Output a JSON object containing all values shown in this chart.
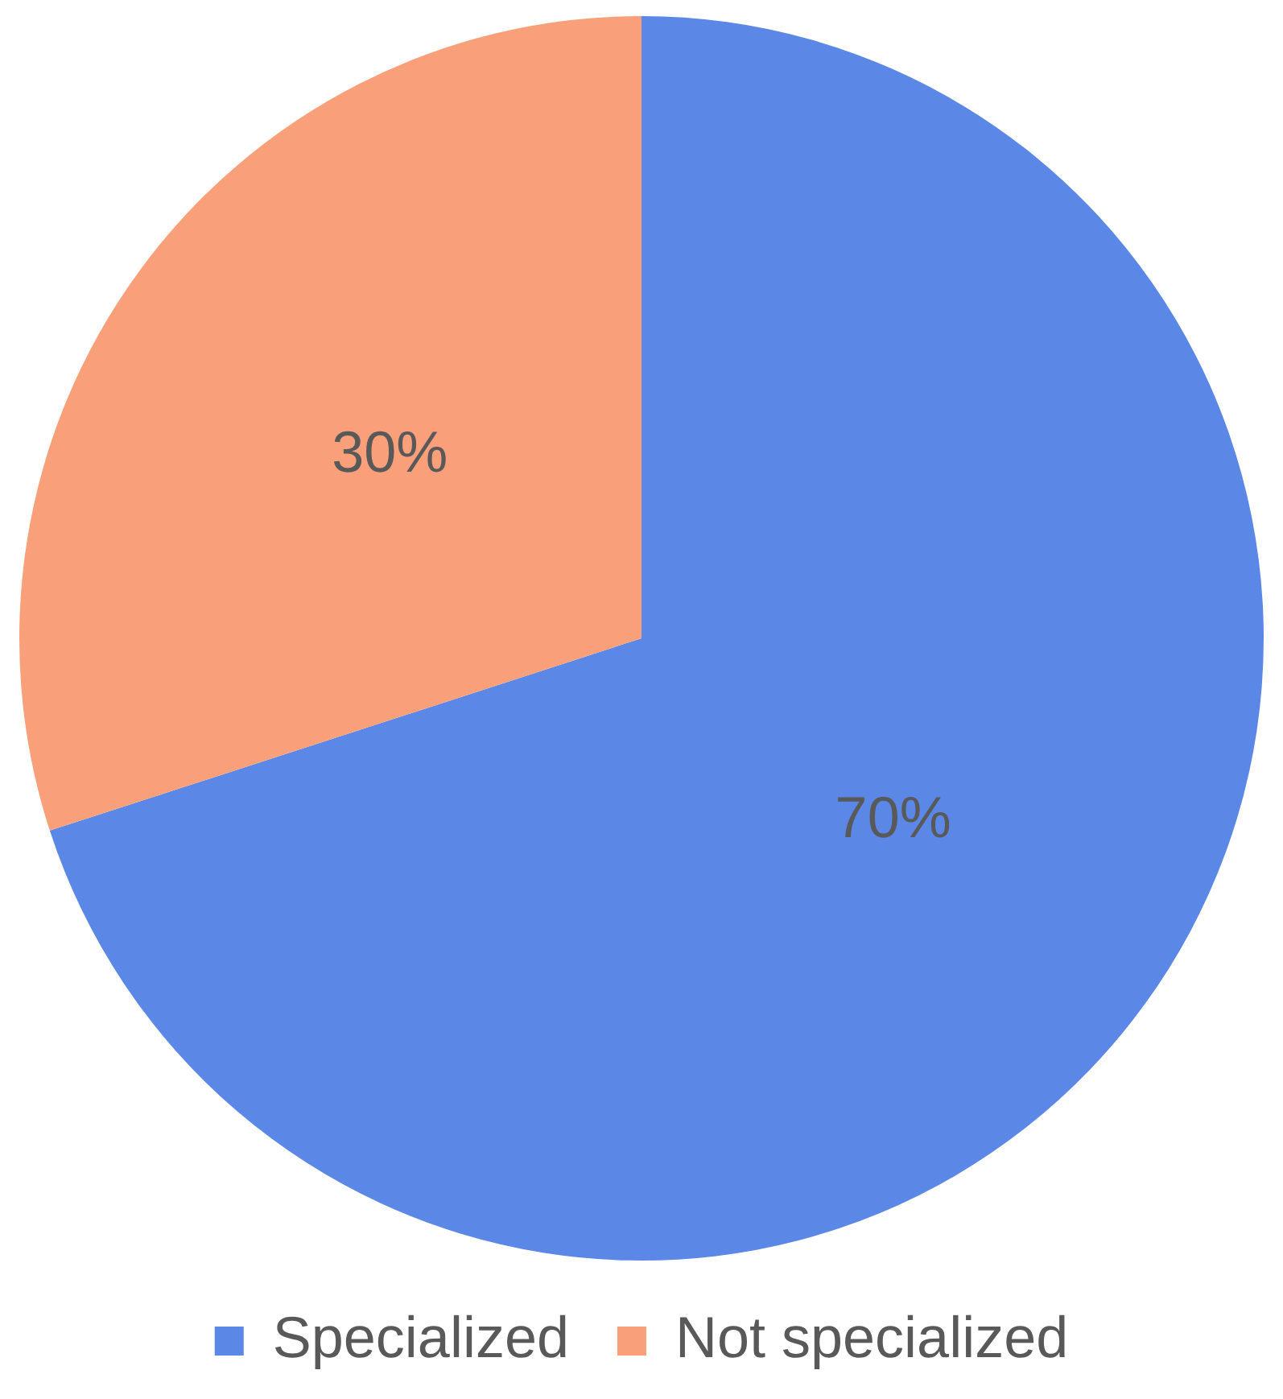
{
  "chart_data": {
    "type": "pie",
    "categories": [
      "Specialized",
      "Not specialized"
    ],
    "values": [
      70,
      30
    ],
    "colors": [
      "#5b87e6",
      "#f9a07a"
    ],
    "value_labels": [
      "70%",
      "30%"
    ],
    "legend": "bottom"
  }
}
